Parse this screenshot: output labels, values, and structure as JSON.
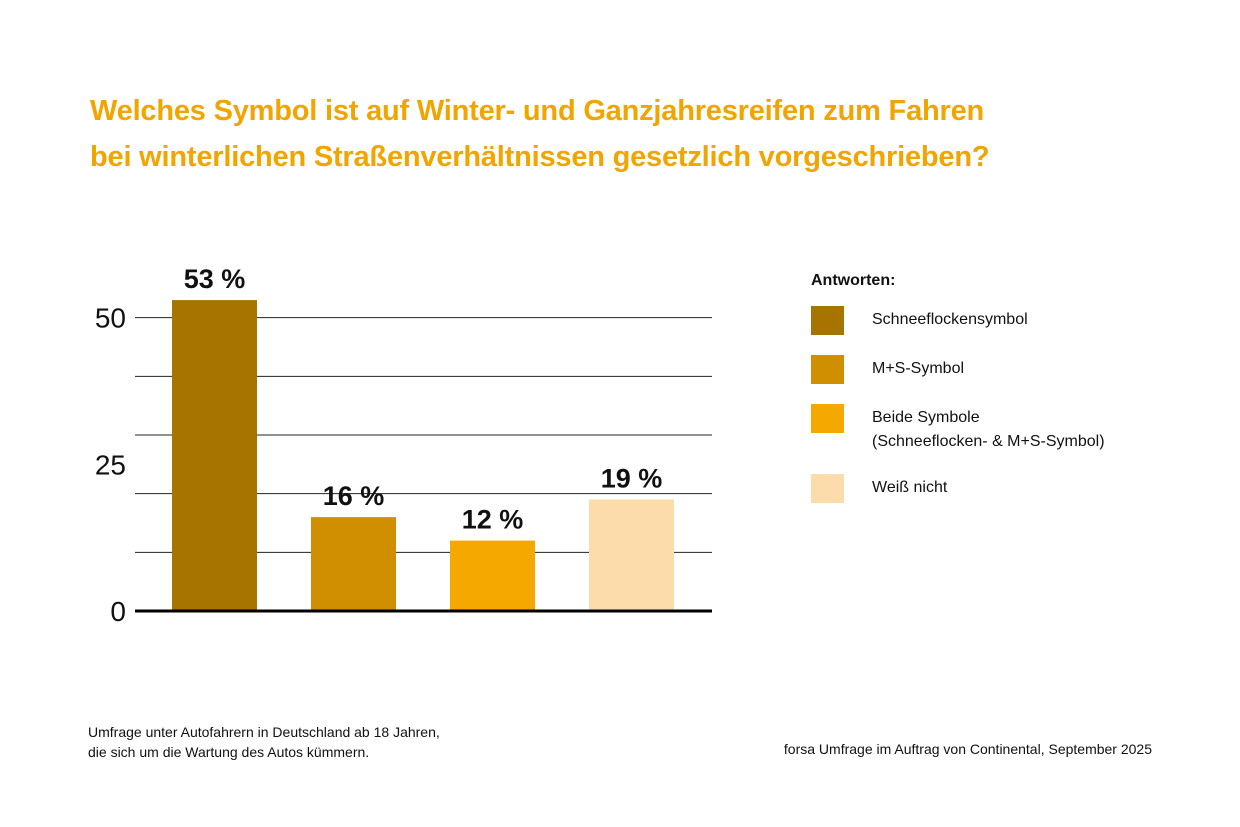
{
  "chart_data": {
    "type": "bar",
    "title": "Welches Symbol ist auf Winter- und Ganzjahresreifen zum Fahren\nbei winterlichen Straßenverhältnissen gesetzlich vorgeschrieben?",
    "legend_title": "Antworten:",
    "categories": [
      "Schneeflockensymbol",
      "M+S-Symbol",
      "Beide Symbole\n(Schneeflocken- & M+S-Symbol)",
      "Weiß nicht"
    ],
    "values": [
      53,
      16,
      12,
      19
    ],
    "value_labels": [
      "53 %",
      "16 %",
      "12 %",
      "19 %"
    ],
    "colors": [
      "#a87400",
      "#d08f00",
      "#f5a800",
      "#fcdcaa"
    ],
    "ylim": [
      0,
      60
    ],
    "yticks": [
      0,
      25,
      50
    ],
    "grid_lines": [
      10,
      20,
      30,
      40,
      50
    ],
    "grid": true,
    "legend": "right",
    "note": "Umfrage unter Autofahrern in Deutschland ab 18 Jahren,\ndie sich um die Wartung des Autos kümmern.",
    "source": "forsa Umfrage im Auftrag von Continental, September 2025"
  }
}
